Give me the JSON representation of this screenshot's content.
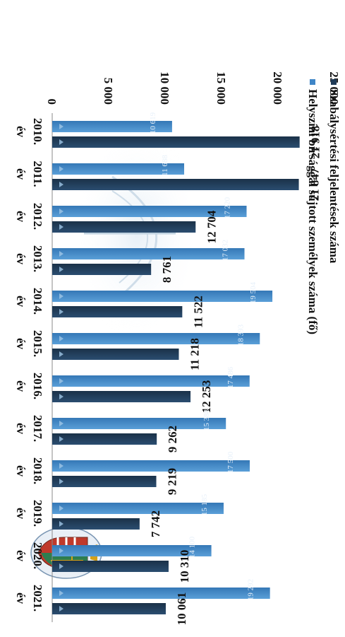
{
  "chart_data": {
    "type": "bar",
    "orientation": "rotated-90-clockwise",
    "categories": [
      "2010. év",
      "2011. év",
      "2012. év",
      "2013. év",
      "2014. év",
      "2015. év",
      "2016. év",
      "2017. év",
      "2018. év",
      "2019. év",
      "2020. év",
      "2021. év"
    ],
    "category_years": [
      "2010.",
      "2011.",
      "2012.",
      "2013.",
      "2014.",
      "2015.",
      "2016.",
      "2017.",
      "2018.",
      "2019.",
      "2020.",
      "2021."
    ],
    "category_suffix": "év",
    "series": [
      {
        "name": "Szabálysértési feljelentések száma",
        "color": "#1f3b57",
        "values": [
          21918,
          21847,
          12704,
          8761,
          11522,
          11218,
          12253,
          9262,
          9219,
          7742,
          10310,
          10061
        ],
        "labels": [
          "21 918",
          "21 847",
          "12 704",
          "8 761",
          "11 522",
          "11 218",
          "12 253",
          "9 262",
          "9 219",
          "7 742",
          "10 310",
          "10 061"
        ]
      },
      {
        "name": "Helyszíni bírsággal sújtott személyek száma (fő)",
        "color": "#3f86c7",
        "values": [
          10619,
          11688,
          17220,
          17032,
          19504,
          18393,
          17486,
          15388,
          17500,
          15185,
          14100,
          19292
        ],
        "labels": [
          "10 619",
          "11 688",
          "17 220",
          "17 032",
          "19 504",
          "18 393",
          "17 486",
          "15 388",
          "17 500",
          "15 185",
          "14 100",
          "19 292"
        ]
      }
    ],
    "value_axis": {
      "range": [
        0,
        25000
      ],
      "ticks": [
        0,
        5000,
        10000,
        15000,
        20000,
        25000
      ],
      "tick_labels": [
        "0",
        "5 000",
        "10 000",
        "15 000",
        "20 000",
        "25 000"
      ]
    },
    "legend_placement": "top",
    "grid": false
  }
}
